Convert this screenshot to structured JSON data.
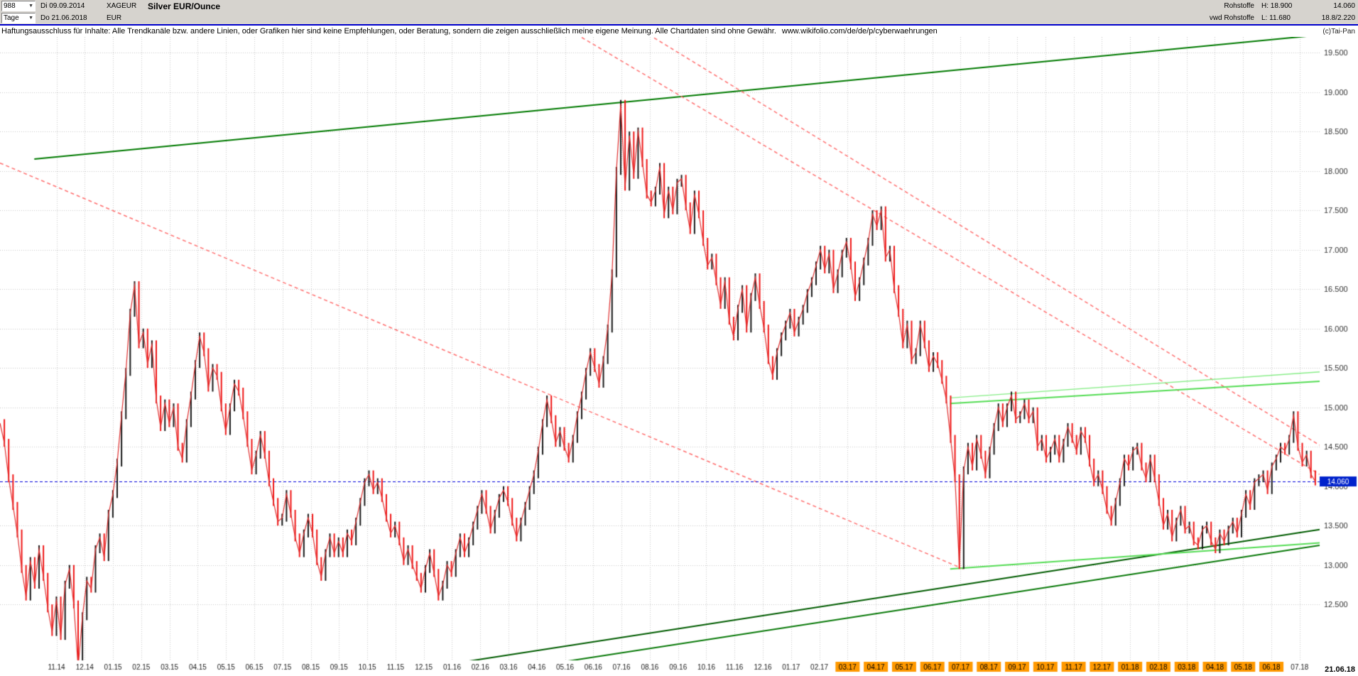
{
  "header": {
    "bars_count": "988",
    "date_from": "Di 09.09.2014",
    "symbol": "XAGEUR",
    "instrument_title": "Silver EUR/Ounce",
    "period": "Tage",
    "date_to": "Do 21.06.2018",
    "currency": "EUR",
    "category": "Rohstoffe",
    "provider": "vwd Rohstoffe",
    "high_label": "H: 18.900",
    "low_label": "L: 11.680",
    "last_price": "14.060",
    "quote_extra": "18.8/2.220"
  },
  "disclaimer": {
    "text": "Haftungsausschluss für Inhalte: Alle Trendkanäle bzw. andere Linien, oder Grafiken hier sind keine Empfehlungen, oder Beratung, sondern die zeigen ausschließlich meine eigene Meinung. Alle Chartdaten sind ohne Gewähr.",
    "url": "www.wikifolio.com/de/de/p/cyberwaehrungen",
    "copyright": "(c)Tai-Pan"
  },
  "chart_data": {
    "type": "candlestick",
    "title": "Silver EUR/Ounce",
    "symbol": "XAGEUR",
    "timeframe": "Tage",
    "date_range": [
      "09.09.2014",
      "21.06.2018"
    ],
    "high": 18.9,
    "low": 11.68,
    "current_price": 14.06,
    "current_price_label": "14.060",
    "last_date_label": "21.06.18",
    "ylim": [
      11.79,
      19.7
    ],
    "y_axis": {
      "tick_labels": [
        "19.500",
        "19.000",
        "18.500",
        "18.000",
        "17.500",
        "17.000",
        "16.500",
        "16.000",
        "15.500",
        "15.000",
        "14.500",
        "14.000",
        "13.500",
        "13.000",
        "12.500"
      ],
      "tick_values": [
        19.5,
        19.0,
        18.5,
        18.0,
        17.5,
        17.0,
        16.5,
        16.0,
        15.5,
        15.0,
        14.5,
        14.0,
        13.5,
        13.0,
        12.5
      ]
    },
    "x_axis": {
      "labels": [
        "11.14",
        "12.14",
        "01.15",
        "02.15",
        "03.15",
        "04.15",
        "05.15",
        "06.15",
        "07.15",
        "08.15",
        "09.15",
        "10.15",
        "11.15",
        "12.15",
        "01.16",
        "02.16",
        "03.16",
        "04.16",
        "05.16",
        "06.16",
        "07.16",
        "08.16",
        "09.16",
        "10.16",
        "11.16",
        "12.16",
        "01.17",
        "02.17",
        "03.17",
        "04.17",
        "05.17",
        "06.17",
        "07.17",
        "08.17",
        "09.17",
        "10.17",
        "11.17",
        "12.17",
        "01.18",
        "02.18",
        "03.18",
        "04.18",
        "05.18",
        "06.18",
        "07.18"
      ],
      "first_fraction": 0.0428,
      "step_fraction": 0.02141,
      "highlight_start_index": 28,
      "highlight_end_index": 43,
      "highlight_color": "#ff9900"
    },
    "horizontal_line": {
      "price": 14.06,
      "color": "#0000dd",
      "label": "14.060",
      "label_bg": "#0022cc"
    },
    "grid": true,
    "colors": {
      "up": "#1a1a1a",
      "down": "#f01818",
      "line": "#e03030",
      "grid": "#c9c9c9",
      "bg": "#ffffff",
      "axis_text": "#333333"
    },
    "trendlines": [
      {
        "name": "rising-resistance-top",
        "color": "#007a00",
        "width": 2,
        "dash": false,
        "x1": 0.026,
        "p1": 18.15,
        "x2": 0.997,
        "p2": 19.72
      },
      {
        "name": "falling-resistance-long",
        "color": "#ff7070",
        "width": 1.5,
        "dash": true,
        "x1": 0.0,
        "p1": 18.1,
        "x2": 0.73,
        "p2": 12.95
      },
      {
        "name": "falling-resistance-1",
        "color": "#ff7070",
        "width": 1.5,
        "dash": true,
        "x1": 0.42,
        "p1": 19.9,
        "x2": 1.0,
        "p2": 14.15
      },
      {
        "name": "falling-resistance-2",
        "color": "#ff7070",
        "width": 1.5,
        "dash": true,
        "x1": 0.475,
        "p1": 19.9,
        "x2": 1.0,
        "p2": 14.52
      },
      {
        "name": "rising-support-1",
        "color": "#005c00",
        "width": 2,
        "dash": false,
        "x1": 0.355,
        "p1": 11.78,
        "x2": 1.0,
        "p2": 13.45
      },
      {
        "name": "rising-support-2",
        "color": "#0a7a0a",
        "width": 2,
        "dash": false,
        "x1": 0.43,
        "p1": 11.78,
        "x2": 1.0,
        "p2": 13.25
      },
      {
        "name": "minor-resistance-light-1",
        "color": "#55dd55",
        "width": 2,
        "dash": false,
        "x1": 0.72,
        "p1": 15.05,
        "x2": 1.0,
        "p2": 15.33
      },
      {
        "name": "minor-resistance-light-2",
        "color": "#88ee88",
        "width": 1.5,
        "dash": false,
        "x1": 0.72,
        "p1": 15.12,
        "x2": 1.0,
        "p2": 15.45
      },
      {
        "name": "minor-support-light",
        "color": "#55dd55",
        "width": 2,
        "dash": false,
        "x1": 0.72,
        "p1": 12.95,
        "x2": 1.0,
        "p2": 13.28
      }
    ],
    "prices": [
      14.8,
      14.55,
      14.1,
      13.75,
      13.4,
      12.95,
      12.6,
      13.05,
      12.75,
      13.2,
      12.85,
      12.45,
      12.15,
      12.55,
      12.1,
      12.75,
      12.95,
      12.5,
      11.7,
      12.35,
      12.8,
      12.7,
      13.2,
      13.35,
      13.1,
      13.65,
      13.9,
      14.3,
      14.9,
      15.45,
      16.2,
      16.55,
      15.8,
      15.95,
      15.55,
      15.8,
      15.1,
      14.75,
      15.05,
      14.8,
      15.0,
      14.5,
      14.35,
      14.8,
      15.15,
      15.55,
      15.9,
      15.7,
      15.25,
      15.5,
      15.4,
      15.0,
      14.7,
      15.0,
      15.3,
      15.2,
      14.9,
      14.55,
      14.2,
      14.4,
      14.65,
      14.4,
      14.05,
      13.8,
      13.55,
      13.6,
      13.9,
      13.65,
      13.35,
      13.15,
      13.4,
      13.6,
      13.4,
      13.05,
      12.85,
      13.15,
      13.35,
      13.15,
      13.3,
      13.15,
      13.4,
      13.3,
      13.55,
      13.8,
      14.05,
      14.15,
      13.95,
      14.05,
      13.85,
      13.6,
      13.4,
      13.5,
      13.3,
      13.05,
      13.2,
      13.0,
      12.85,
      12.7,
      12.95,
      13.15,
      12.9,
      12.6,
      12.75,
      13.0,
      12.9,
      13.15,
      13.35,
      13.15,
      13.3,
      13.5,
      13.7,
      13.9,
      13.7,
      13.45,
      13.65,
      13.85,
      13.95,
      13.8,
      13.55,
      13.35,
      13.55,
      13.75,
      13.95,
      14.15,
      14.45,
      14.8,
      15.1,
      14.85,
      14.55,
      14.7,
      14.5,
      14.35,
      14.6,
      14.9,
      15.15,
      15.45,
      15.7,
      15.5,
      15.3,
      15.6,
      16.0,
      16.7,
      18.0,
      18.85,
      17.8,
      18.45,
      17.95,
      18.5,
      18.1,
      17.7,
      17.6,
      17.75,
      18.05,
      17.45,
      17.75,
      17.5,
      17.85,
      17.9,
      17.55,
      17.25,
      17.7,
      17.45,
      17.1,
      16.8,
      16.9,
      16.6,
      16.3,
      16.6,
      16.1,
      15.9,
      16.25,
      16.5,
      16.0,
      16.4,
      16.65,
      16.3,
      16.0,
      15.6,
      15.4,
      15.7,
      15.9,
      16.05,
      16.2,
      15.95,
      16.1,
      16.25,
      16.45,
      16.6,
      16.8,
      17.0,
      16.75,
      16.95,
      16.5,
      16.7,
      16.95,
      17.1,
      16.8,
      16.4,
      16.6,
      16.85,
      17.1,
      17.45,
      17.3,
      17.5,
      16.9,
      17.0,
      16.5,
      16.2,
      15.8,
      16.05,
      15.6,
      15.7,
      16.05,
      15.8,
      15.5,
      15.65,
      15.55,
      15.35,
      15.1,
      14.6,
      14.1,
      13.0,
      14.2,
      14.5,
      14.25,
      14.6,
      14.4,
      14.15,
      14.45,
      14.75,
      15.0,
      14.8,
      15.0,
      15.15,
      14.85,
      14.9,
      15.05,
      14.85,
      14.95,
      14.5,
      14.6,
      14.35,
      14.45,
      14.6,
      14.35,
      14.55,
      14.75,
      14.6,
      14.45,
      14.7,
      14.6,
      14.3,
      14.05,
      14.15,
      13.95,
      13.7,
      13.55,
      13.8,
      14.05,
      14.35,
      14.25,
      14.45,
      14.5,
      14.25,
      14.1,
      14.35,
      14.1,
      13.8,
      13.5,
      13.65,
      13.35,
      13.55,
      13.7,
      13.45,
      13.5,
      13.3,
      13.25,
      13.45,
      13.5,
      13.3,
      13.2,
      13.4,
      13.3,
      13.45,
      13.55,
      13.4,
      13.65,
      13.9,
      13.75,
      14.05,
      14.1,
      14.15,
      13.95,
      14.25,
      14.35,
      14.5,
      14.45,
      14.6,
      14.9,
      14.5,
      14.3,
      14.4,
      14.15,
      14.06
    ]
  }
}
